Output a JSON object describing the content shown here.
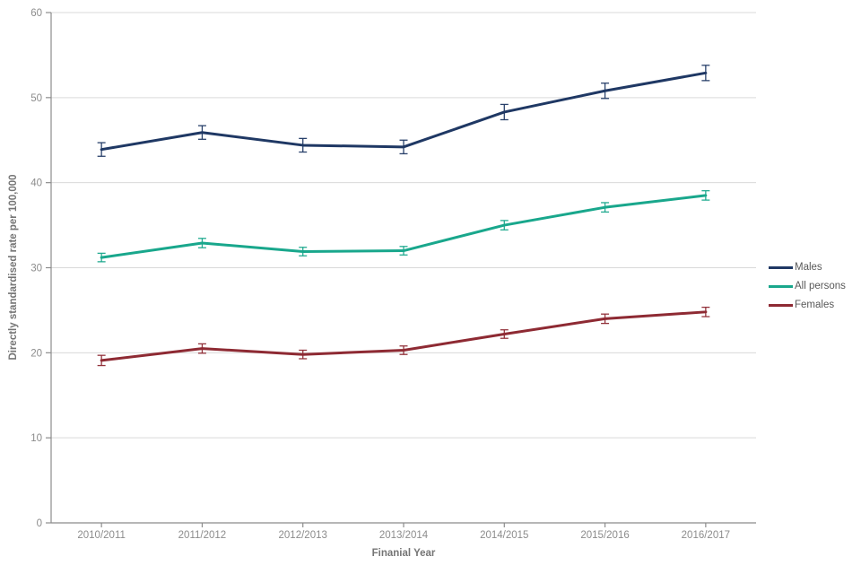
{
  "chart_data": {
    "type": "line",
    "title": "",
    "xlabel": "Finanial Year",
    "ylabel": "Directly standardised rate per 100,000",
    "categories": [
      "2010/2011",
      "2011/2012",
      "2012/2013",
      "2013/2014",
      "2014/2015",
      "2015/2016",
      "2016/2017"
    ],
    "y_ticks": [
      0,
      10,
      20,
      30,
      40,
      50,
      60
    ],
    "ylim": [
      0,
      60
    ],
    "grid": true,
    "error_bars": true,
    "legend_position": "right",
    "series": [
      {
        "name": "Males",
        "color": "#1f3864",
        "values": [
          43.9,
          45.9,
          44.4,
          44.2,
          48.3,
          50.8,
          52.9
        ],
        "errors": [
          0.8,
          0.8,
          0.8,
          0.8,
          0.9,
          0.9,
          0.9
        ]
      },
      {
        "name": "All persons",
        "color": "#19a78c",
        "values": [
          31.2,
          32.9,
          31.9,
          32.0,
          35.0,
          37.1,
          38.5
        ],
        "errors": [
          0.5,
          0.55,
          0.5,
          0.5,
          0.55,
          0.55,
          0.55
        ]
      },
      {
        "name": "Females",
        "color": "#8e2a33",
        "values": [
          19.1,
          20.5,
          19.8,
          20.3,
          22.2,
          24.0,
          24.8
        ],
        "errors": [
          0.6,
          0.55,
          0.5,
          0.5,
          0.5,
          0.55,
          0.55
        ]
      }
    ]
  },
  "colors": {
    "background": "#ffffff",
    "grid": "#d9d9d9",
    "axis": "#8c8c8c",
    "tick_text": "#8c8c8c",
    "title_text": "#757575",
    "legend_text": "#595959"
  }
}
